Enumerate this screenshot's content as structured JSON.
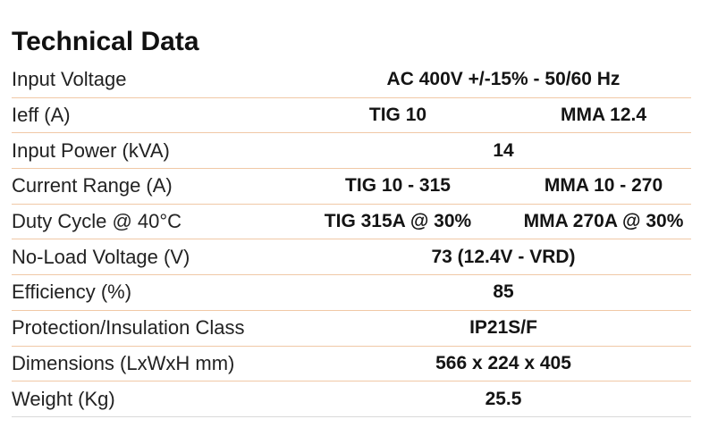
{
  "title": "Technical Data",
  "rows": [
    {
      "label": "Input Voltage",
      "value": "AC 400V +/-15% - 50/60 Hz"
    },
    {
      "label": "Ieff (A)",
      "values": [
        "TIG 10",
        "MMA 12.4"
      ]
    },
    {
      "label": "Input Power (kVA)",
      "value": "14"
    },
    {
      "label": "Current Range (A)",
      "values": [
        "TIG 10 - 315",
        "MMA 10 - 270"
      ]
    },
    {
      "label": "Duty Cycle @ 40°C",
      "values": [
        "TIG 315A @ 30%",
        "MMA 270A @ 30%"
      ]
    },
    {
      "label": "No-Load Voltage (V)",
      "value": "73 (12.4V - VRD)"
    },
    {
      "label": "Efficiency (%)",
      "value": "85"
    },
    {
      "label": "Protection/Insulation Class",
      "value": "IP21S/F"
    },
    {
      "label": "Dimensions (LxWxH mm)",
      "value": "566 x 224 x 405"
    },
    {
      "label": "Weight (Kg)",
      "value": "25.5"
    }
  ],
  "colors": {
    "row_divider": "#f0c8a6",
    "last_divider": "#d9d9d9",
    "text": "#1a1a1a"
  }
}
